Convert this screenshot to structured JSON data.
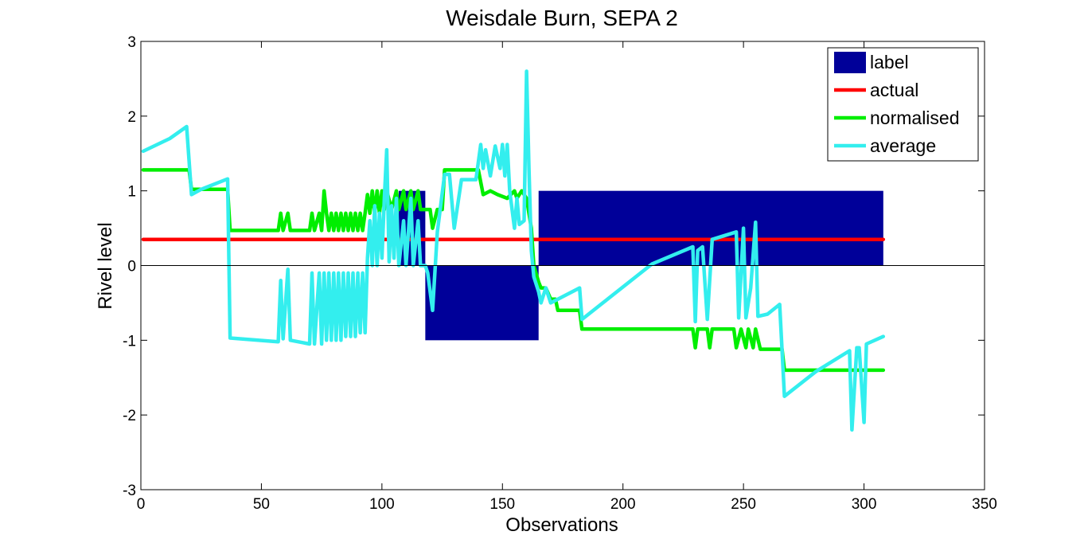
{
  "chart_data": {
    "type": "line",
    "title": "Weisdale Burn, SEPA 2",
    "xlabel": "Observations",
    "ylabel": "Rivel level",
    "xlim": [
      0,
      350
    ],
    "ylim": [
      -3,
      3
    ],
    "xticks": [
      0,
      50,
      100,
      150,
      200,
      250,
      300,
      350
    ],
    "yticks": [
      -3,
      -2,
      -1,
      0,
      1,
      2,
      3
    ],
    "grid": false,
    "legend_position": "top-right",
    "zero_line": true,
    "series": [
      {
        "name": "label",
        "kind": "bar",
        "color": "#000099",
        "segments": [
          {
            "x0": 107,
            "x1": 118,
            "value": 1
          },
          {
            "x0": 118,
            "x1": 165,
            "value": -1
          },
          {
            "x0": 165,
            "x1": 308,
            "value": 1
          }
        ]
      },
      {
        "name": "actual",
        "kind": "line",
        "color": "#ff0000",
        "points": [
          [
            1,
            0.35
          ],
          [
            308,
            0.35
          ]
        ]
      },
      {
        "name": "normalised",
        "kind": "line",
        "color": "#00ee00",
        "points": [
          [
            1,
            1.28
          ],
          [
            20,
            1.28
          ],
          [
            21,
            1.02
          ],
          [
            36,
            1.02
          ],
          [
            37,
            0.47
          ],
          [
            57,
            0.47
          ],
          [
            58,
            0.7
          ],
          [
            59,
            0.47
          ],
          [
            61,
            0.7
          ],
          [
            62,
            0.47
          ],
          [
            70,
            0.47
          ],
          [
            71,
            0.7
          ],
          [
            72,
            0.47
          ],
          [
            74,
            0.7
          ],
          [
            75,
            0.47
          ],
          [
            76,
            1.0
          ],
          [
            77,
            0.7
          ],
          [
            78,
            0.47
          ],
          [
            79,
            0.7
          ],
          [
            80,
            0.47
          ],
          [
            81,
            0.7
          ],
          [
            82,
            0.47
          ],
          [
            83,
            0.7
          ],
          [
            84,
            0.47
          ],
          [
            85,
            0.7
          ],
          [
            86,
            0.47
          ],
          [
            87,
            0.7
          ],
          [
            88,
            0.47
          ],
          [
            89,
            0.7
          ],
          [
            90,
            0.47
          ],
          [
            91,
            0.7
          ],
          [
            92,
            0.47
          ],
          [
            93,
            0.7
          ],
          [
            94,
            0.95
          ],
          [
            95,
            0.7
          ],
          [
            96,
            1.0
          ],
          [
            97,
            0.7
          ],
          [
            98,
            1.0
          ],
          [
            99,
            0.7
          ],
          [
            100,
            1.0
          ],
          [
            101,
            0.75
          ],
          [
            102,
            1.0
          ],
          [
            104,
            0.75
          ],
          [
            106,
            1.0
          ],
          [
            107,
            0.75
          ],
          [
            109,
            1.0
          ],
          [
            110,
            0.75
          ],
          [
            112,
            1.0
          ],
          [
            113,
            0.75
          ],
          [
            115,
            1.0
          ],
          [
            116,
            0.75
          ],
          [
            120,
            0.75
          ],
          [
            121,
            0.5
          ],
          [
            123,
            0.75
          ],
          [
            125,
            0.75
          ],
          [
            126,
            1.28
          ],
          [
            140,
            1.28
          ],
          [
            142,
            0.95
          ],
          [
            145,
            1.0
          ],
          [
            148,
            0.95
          ],
          [
            152,
            0.9
          ],
          [
            155,
            1.0
          ],
          [
            156,
            0.9
          ],
          [
            158,
            1.0
          ],
          [
            160,
            0.9
          ],
          [
            162,
            0.5
          ],
          [
            163,
            0.0
          ],
          [
            165,
            -0.22
          ],
          [
            166,
            -0.3
          ],
          [
            168,
            -0.3
          ],
          [
            170,
            -0.45
          ],
          [
            172,
            -0.45
          ],
          [
            173,
            -0.6
          ],
          [
            182,
            -0.6
          ],
          [
            183,
            -0.85
          ],
          [
            229,
            -0.85
          ],
          [
            230,
            -1.1
          ],
          [
            231,
            -0.85
          ],
          [
            235,
            -0.85
          ],
          [
            236,
            -1.1
          ],
          [
            237,
            -0.85
          ],
          [
            246,
            -0.85
          ],
          [
            247,
            -1.1
          ],
          [
            249,
            -0.85
          ],
          [
            251,
            -1.1
          ],
          [
            252,
            -0.85
          ],
          [
            254,
            -1.1
          ],
          [
            255,
            -0.85
          ],
          [
            257,
            -1.12
          ],
          [
            266,
            -1.12
          ],
          [
            267,
            -1.4
          ],
          [
            308,
            -1.4
          ]
        ]
      },
      {
        "name": "average",
        "kind": "line",
        "color": "#33eeee",
        "points": [
          [
            1,
            1.53
          ],
          [
            12,
            1.7
          ],
          [
            19,
            1.86
          ],
          [
            21,
            0.95
          ],
          [
            25,
            1.02
          ],
          [
            36,
            1.16
          ],
          [
            37,
            -0.97
          ],
          [
            57,
            -1.02
          ],
          [
            58,
            -0.2
          ],
          [
            59,
            -0.98
          ],
          [
            61,
            -0.05
          ],
          [
            62,
            -1.0
          ],
          [
            70,
            -1.05
          ],
          [
            71,
            -0.1
          ],
          [
            72,
            -1.05
          ],
          [
            74,
            -0.1
          ],
          [
            75,
            -1.05
          ],
          [
            76,
            -0.1
          ],
          [
            77,
            -1.0
          ],
          [
            78,
            -0.1
          ],
          [
            79,
            -1.0
          ],
          [
            80,
            -0.1
          ],
          [
            81,
            -1.0
          ],
          [
            82,
            -0.1
          ],
          [
            83,
            -1.0
          ],
          [
            84,
            -0.1
          ],
          [
            85,
            -0.95
          ],
          [
            86,
            -0.1
          ],
          [
            87,
            -0.95
          ],
          [
            88,
            -0.1
          ],
          [
            89,
            -0.95
          ],
          [
            90,
            -0.1
          ],
          [
            91,
            -0.9
          ],
          [
            92,
            -0.1
          ],
          [
            93,
            -0.9
          ],
          [
            94,
            0.1
          ],
          [
            95,
            0.6
          ],
          [
            96,
            0.0
          ],
          [
            97,
            0.8
          ],
          [
            98,
            0.0
          ],
          [
            99,
            0.7
          ],
          [
            100,
            0.1
          ],
          [
            101,
            0.9
          ],
          [
            102,
            1.55
          ],
          [
            103,
            0.05
          ],
          [
            104,
            0.8
          ],
          [
            105,
            0.1
          ],
          [
            106,
            0.9
          ],
          [
            107,
            0.0
          ],
          [
            109,
            0.6
          ],
          [
            110,
            0.0
          ],
          [
            112,
            0.9
          ],
          [
            113,
            0.0
          ],
          [
            115,
            0.6
          ],
          [
            116,
            0.0
          ],
          [
            118,
            0.0
          ],
          [
            119,
            -0.1
          ],
          [
            121,
            -0.6
          ],
          [
            123,
            0.45
          ],
          [
            126,
            1.22
          ],
          [
            128,
            1.22
          ],
          [
            130,
            0.5
          ],
          [
            133,
            1.15
          ],
          [
            139,
            1.15
          ],
          [
            141,
            1.62
          ],
          [
            142,
            1.3
          ],
          [
            143,
            1.55
          ],
          [
            145,
            1.2
          ],
          [
            147,
            1.6
          ],
          [
            149,
            1.3
          ],
          [
            150,
            1.62
          ],
          [
            151,
            1.2
          ],
          [
            152,
            1.62
          ],
          [
            153,
            1.0
          ],
          [
            155,
            0.5
          ],
          [
            156,
            0.9
          ],
          [
            157,
            0.55
          ],
          [
            159,
            0.6
          ],
          [
            160,
            2.6
          ],
          [
            161,
            1.3
          ],
          [
            162,
            0.2
          ],
          [
            163,
            -0.15
          ],
          [
            165,
            -0.35
          ],
          [
            166,
            -0.5
          ],
          [
            168,
            -0.3
          ],
          [
            170,
            -0.5
          ],
          [
            182,
            -0.3
          ],
          [
            183,
            -0.72
          ],
          [
            212,
            0.02
          ],
          [
            229,
            0.25
          ],
          [
            230,
            -0.75
          ],
          [
            231,
            0.2
          ],
          [
            233,
            0.25
          ],
          [
            235,
            -0.72
          ],
          [
            237,
            0.35
          ],
          [
            247,
            0.45
          ],
          [
            248,
            -0.7
          ],
          [
            250,
            0.5
          ],
          [
            251,
            -0.7
          ],
          [
            253,
            -0.3
          ],
          [
            255,
            0.58
          ],
          [
            256,
            -0.68
          ],
          [
            260,
            -0.65
          ],
          [
            265,
            -0.52
          ],
          [
            267,
            -1.75
          ],
          [
            280,
            -1.42
          ],
          [
            294,
            -1.14
          ],
          [
            295,
            -2.2
          ],
          [
            297,
            -1.1
          ],
          [
            298,
            -1.1
          ],
          [
            300,
            -2.1
          ],
          [
            301,
            -1.05
          ],
          [
            308,
            -0.95
          ]
        ]
      }
    ]
  }
}
